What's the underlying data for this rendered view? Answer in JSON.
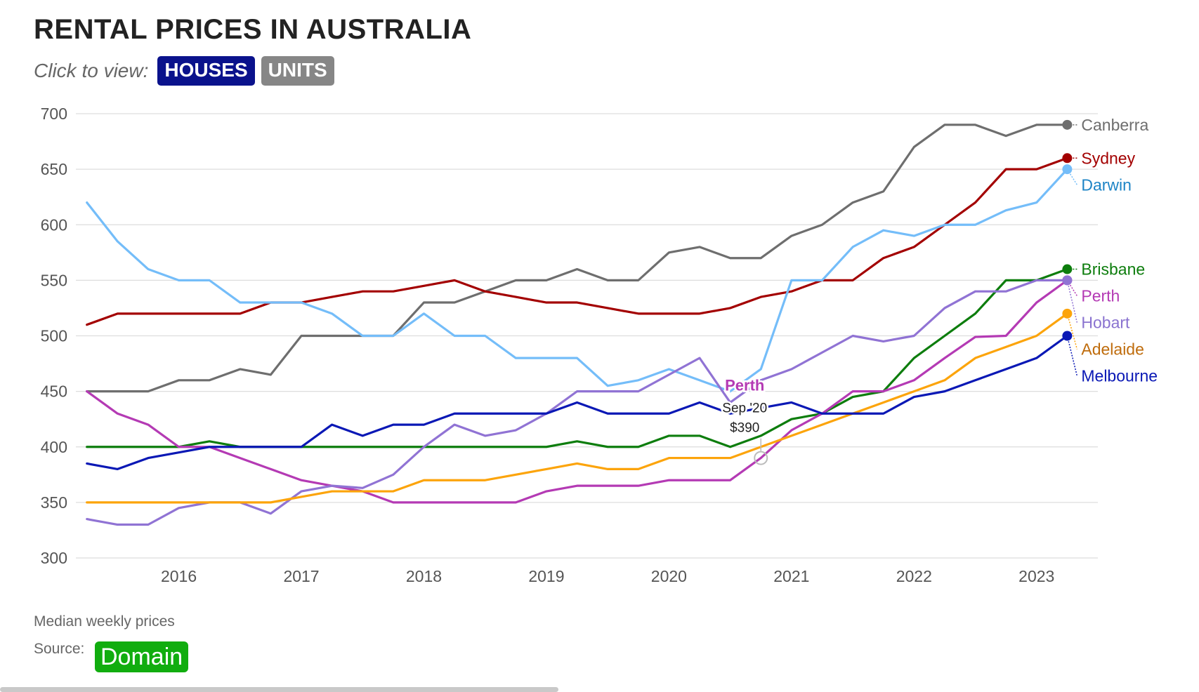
{
  "title": "RENTAL PRICES IN AUSTRALIA",
  "toggle": {
    "prompt": "Click to view:",
    "houses": "HOUSES",
    "units": "UNITS",
    "active": "HOUSES"
  },
  "footer": {
    "note": "Median weekly prices",
    "source_label": "Source:",
    "source": "Domain"
  },
  "tooltip": {
    "series": "Perth",
    "date": "Sep '20",
    "value": "$390"
  },
  "chart_data": {
    "type": "line",
    "title": "RENTAL PRICES IN AUSTRALIA",
    "ylabel": "Median weekly prices",
    "xlabel": "",
    "x": [
      2015.25,
      2015.5,
      2015.75,
      2016.0,
      2016.25,
      2016.5,
      2016.75,
      2017.0,
      2017.25,
      2017.5,
      2017.75,
      2018.0,
      2018.25,
      2018.5,
      2018.75,
      2019.0,
      2019.25,
      2019.5,
      2019.75,
      2020.0,
      2020.25,
      2020.5,
      2020.75,
      2021.0,
      2021.25,
      2021.5,
      2021.75,
      2022.0,
      2022.25,
      2022.5,
      2022.75,
      2023.0,
      2023.25
    ],
    "xlim": [
      2015.2,
      2023.5
    ],
    "xticks": [
      2016,
      2017,
      2018,
      2019,
      2020,
      2021,
      2022,
      2023
    ],
    "xtick_labels": [
      "2016",
      "2017",
      "2018",
      "2019",
      "2020",
      "2021",
      "2022",
      "2023"
    ],
    "ylim": [
      300,
      700
    ],
    "yticks": [
      700,
      650,
      600,
      550,
      500,
      450,
      400,
      350,
      300
    ],
    "ytick_labels": [
      "700",
      "650",
      "600",
      "550",
      "500",
      "450",
      "400",
      "350",
      "300"
    ],
    "grid": true,
    "legend": "end-labels",
    "series": [
      {
        "name": "Canberra",
        "color": "#6e6e6e",
        "label_color": "#6e6e6e",
        "values": [
          450,
          450,
          450,
          460,
          460,
          470,
          465,
          500,
          500,
          500,
          500,
          530,
          530,
          540,
          550,
          550,
          560,
          550,
          550,
          575,
          580,
          570,
          570,
          590,
          600,
          620,
          630,
          670,
          690,
          690,
          680,
          690,
          690
        ]
      },
      {
        "name": "Sydney",
        "color": "#a30000",
        "label_color": "#a30000",
        "values": [
          510,
          520,
          520,
          520,
          520,
          520,
          530,
          530,
          535,
          540,
          540,
          545,
          550,
          540,
          535,
          530,
          530,
          525,
          520,
          520,
          520,
          525,
          535,
          540,
          550,
          550,
          570,
          580,
          600,
          620,
          650,
          650,
          660
        ]
      },
      {
        "name": "Darwin",
        "color": "#74bdf9",
        "label_color": "#1d84c6",
        "values": [
          620,
          585,
          560,
          550,
          550,
          530,
          530,
          530,
          520,
          500,
          500,
          520,
          500,
          500,
          480,
          480,
          480,
          455,
          460,
          470,
          460,
          450,
          470,
          550,
          550,
          580,
          595,
          590,
          600,
          600,
          613,
          620,
          650
        ]
      },
      {
        "name": "Brisbane",
        "color": "#0d7d0d",
        "label_color": "#0d7d0d",
        "values": [
          400,
          400,
          400,
          400,
          405,
          400,
          400,
          400,
          400,
          400,
          400,
          400,
          400,
          400,
          400,
          400,
          405,
          400,
          400,
          410,
          410,
          400,
          410,
          425,
          430,
          445,
          450,
          480,
          500,
          520,
          550,
          550,
          560
        ]
      },
      {
        "name": "Perth",
        "color": "#b43ab4",
        "label_color": "#b43ab4",
        "values": [
          450,
          430,
          420,
          400,
          400,
          390,
          380,
          370,
          365,
          360,
          350,
          350,
          350,
          350,
          350,
          360,
          365,
          365,
          365,
          370,
          370,
          370,
          390,
          415,
          430,
          450,
          450,
          460,
          480,
          499,
          500,
          530,
          550
        ]
      },
      {
        "name": "Hobart",
        "color": "#9073d4",
        "label_color": "#8a73d0",
        "values": [
          335,
          330,
          330,
          345,
          350,
          350,
          340,
          360,
          365,
          363,
          375,
          400,
          420,
          410,
          415,
          430,
          450,
          450,
          450,
          465,
          480,
          440,
          460,
          470,
          485,
          500,
          495,
          500,
          525,
          540,
          540,
          550,
          550
        ]
      },
      {
        "name": "Adelaide",
        "color": "#fca40b",
        "label_color": "#bf6c0c",
        "values": [
          350,
          350,
          350,
          350,
          350,
          350,
          350,
          355,
          360,
          360,
          360,
          370,
          370,
          370,
          375,
          380,
          385,
          380,
          380,
          390,
          390,
          390,
          400,
          410,
          420,
          430,
          440,
          450,
          460,
          480,
          490,
          500,
          520
        ]
      },
      {
        "name": "Melbourne",
        "color": "#0a18b5",
        "label_color": "#0a18b5",
        "values": [
          385,
          380,
          390,
          395,
          400,
          400,
          400,
          400,
          420,
          410,
          420,
          420,
          430,
          430,
          430,
          430,
          440,
          430,
          430,
          430,
          440,
          430,
          435,
          440,
          430,
          430,
          430,
          445,
          450,
          460,
          470,
          480,
          500
        ]
      }
    ]
  }
}
